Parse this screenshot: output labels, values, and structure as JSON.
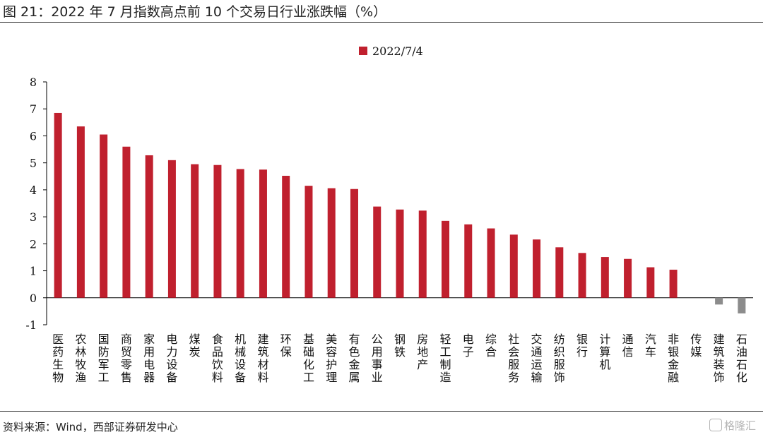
{
  "header": {
    "title": "图 21：2022 年 7 月指数高点前 10 个交易日行业涨跌幅（%）"
  },
  "footer": {
    "source": "资料来源：Wind，西部证券研发中心",
    "watermark": "格隆汇"
  },
  "colors": {
    "positive": "#C0202E",
    "negative": "#8C8C8C",
    "axis": "#000000"
  },
  "chart_data": {
    "type": "bar",
    "title": "",
    "xlabel": "",
    "ylabel": "",
    "ylim": [
      -1,
      8
    ],
    "yticks": [
      -1,
      0,
      1,
      2,
      3,
      4,
      5,
      6,
      7,
      8
    ],
    "grid": false,
    "legend_position": "top-center",
    "categories": [
      "医药生物",
      "农林牧渔",
      "国防军工",
      "商贸零售",
      "家用电器",
      "电力设备",
      "煤炭",
      "食品饮料",
      "机械设备",
      "建筑材料",
      "环保",
      "基础化工",
      "美容护理",
      "有色金属",
      "公用事业",
      "钢铁",
      "房地产",
      "轻工制造",
      "电子",
      "综合",
      "社会服务",
      "交通运输",
      "纺织服饰",
      "银行",
      "计算机",
      "通信",
      "汽车",
      "非银金融",
      "传媒",
      "建筑装饰",
      "石油石化"
    ],
    "series": [
      {
        "name": "2022/7/4",
        "values": [
          6.85,
          6.35,
          6.05,
          5.6,
          5.28,
          5.1,
          4.95,
          4.92,
          4.77,
          4.75,
          4.52,
          4.15,
          4.06,
          4.03,
          3.38,
          3.27,
          3.23,
          2.85,
          2.72,
          2.57,
          2.34,
          2.16,
          1.87,
          1.66,
          1.51,
          1.44,
          1.13,
          1.04,
          0.0,
          -0.25,
          -0.58
        ]
      }
    ]
  }
}
